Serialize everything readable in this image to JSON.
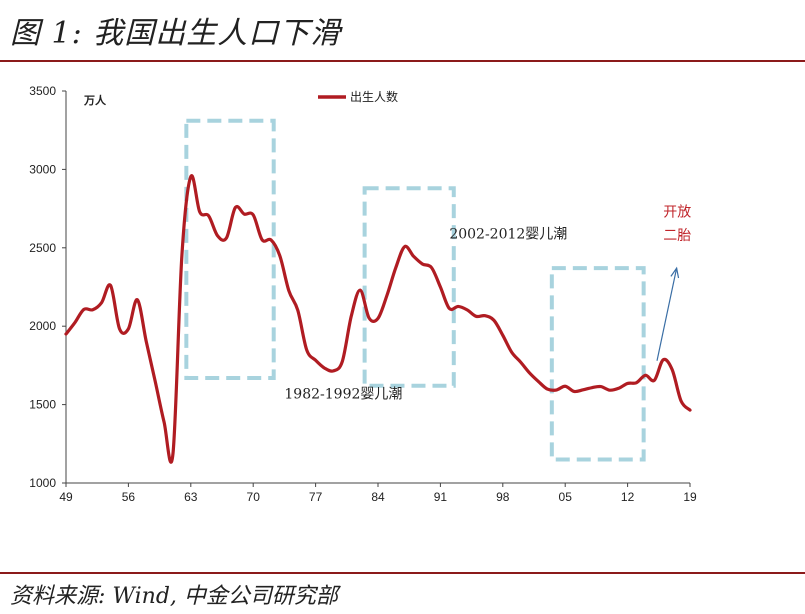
{
  "header": {
    "title": "图 1: 我国出生人口下滑"
  },
  "footer": {
    "source": "资料来源: Wind, 中金公司研究部"
  },
  "chart_data": {
    "type": "line",
    "unit_label": "万人",
    "ylim": [
      1000,
      3500
    ],
    "yticks": [
      1000,
      1500,
      2000,
      2500,
      3000,
      3500
    ],
    "xlim": [
      1949,
      2019
    ],
    "xticks": [
      {
        "year": 1949,
        "label": "49"
      },
      {
        "year": 1956,
        "label": "56"
      },
      {
        "year": 1963,
        "label": "63"
      },
      {
        "year": 1970,
        "label": "70"
      },
      {
        "year": 1977,
        "label": "77"
      },
      {
        "year": 1984,
        "label": "84"
      },
      {
        "year": 1991,
        "label": "91"
      },
      {
        "year": 1998,
        "label": "98"
      },
      {
        "year": 2005,
        "label": "05"
      },
      {
        "year": 2012,
        "label": "12"
      },
      {
        "year": 2019,
        "label": "19"
      }
    ],
    "series": [
      {
        "name": "出生人数",
        "color": "#b01c22",
        "points": [
          [
            1949,
            1950
          ],
          [
            1950,
            2023
          ],
          [
            1951,
            2107
          ],
          [
            1952,
            2105
          ],
          [
            1953,
            2151
          ],
          [
            1954,
            2260
          ],
          [
            1955,
            1984
          ],
          [
            1956,
            1983
          ],
          [
            1957,
            2169
          ],
          [
            1958,
            1903
          ],
          [
            1959,
            1650
          ],
          [
            1960,
            1389
          ],
          [
            1961,
            1187
          ],
          [
            1962,
            2451
          ],
          [
            1963,
            2954
          ],
          [
            1964,
            2729
          ],
          [
            1965,
            2704
          ],
          [
            1966,
            2577
          ],
          [
            1967,
            2563
          ],
          [
            1968,
            2757
          ],
          [
            1969,
            2715
          ],
          [
            1970,
            2710
          ],
          [
            1971,
            2551
          ],
          [
            1972,
            2550
          ],
          [
            1973,
            2447
          ],
          [
            1974,
            2226
          ],
          [
            1975,
            2102
          ],
          [
            1976,
            1849
          ],
          [
            1977,
            1783
          ],
          [
            1978,
            1733
          ],
          [
            1979,
            1715
          ],
          [
            1980,
            1776
          ],
          [
            1981,
            2064
          ],
          [
            1982,
            2230
          ],
          [
            1983,
            2052
          ],
          [
            1984,
            2050
          ],
          [
            1985,
            2196
          ],
          [
            1986,
            2374
          ],
          [
            1987,
            2508
          ],
          [
            1988,
            2445
          ],
          [
            1989,
            2396
          ],
          [
            1990,
            2374
          ],
          [
            1991,
            2250
          ],
          [
            1992,
            2113
          ],
          [
            1993,
            2126
          ],
          [
            1994,
            2104
          ],
          [
            1995,
            2063
          ],
          [
            1996,
            2067
          ],
          [
            1997,
            2038
          ],
          [
            1998,
            1942
          ],
          [
            1999,
            1834
          ],
          [
            2000,
            1771
          ],
          [
            2001,
            1702
          ],
          [
            2002,
            1647
          ],
          [
            2003,
            1599
          ],
          [
            2004,
            1593
          ],
          [
            2005,
            1617
          ],
          [
            2006,
            1584
          ],
          [
            2007,
            1594
          ],
          [
            2008,
            1608
          ],
          [
            2009,
            1615
          ],
          [
            2010,
            1592
          ],
          [
            2011,
            1604
          ],
          [
            2012,
            1635
          ],
          [
            2013,
            1640
          ],
          [
            2014,
            1687
          ],
          [
            2015,
            1655
          ],
          [
            2016,
            1786
          ],
          [
            2017,
            1723
          ],
          [
            2018,
            1523
          ],
          [
            2019,
            1465
          ]
        ]
      }
    ],
    "boxes": [
      {
        "x0": 1962.5,
        "x1": 1972.3,
        "y0": 1670,
        "y1": 3310
      },
      {
        "x0": 1982.5,
        "x1": 1992.5,
        "y0": 1620,
        "y1": 2880
      },
      {
        "x0": 2003.5,
        "x1": 2013.8,
        "y0": 1150,
        "y1": 2370
      }
    ],
    "annotations": [
      {
        "text": "2002-2012婴儿潮",
        "x": 1992,
        "y": 2560
      },
      {
        "text": "1982-1992婴儿潮",
        "x": 1973.5,
        "y": 1540
      },
      {
        "text": "开放",
        "x": 2016.0,
        "y": 2700,
        "color": "#c0242a"
      },
      {
        "text": "二胎",
        "x": 2016.0,
        "y": 2550,
        "color": "#c0242a"
      }
    ],
    "arrow": {
      "from": [
        2015.3,
        1780
      ],
      "to": [
        2017.5,
        2370
      ],
      "color": "#3a6ea5"
    },
    "legend": "top-center"
  }
}
